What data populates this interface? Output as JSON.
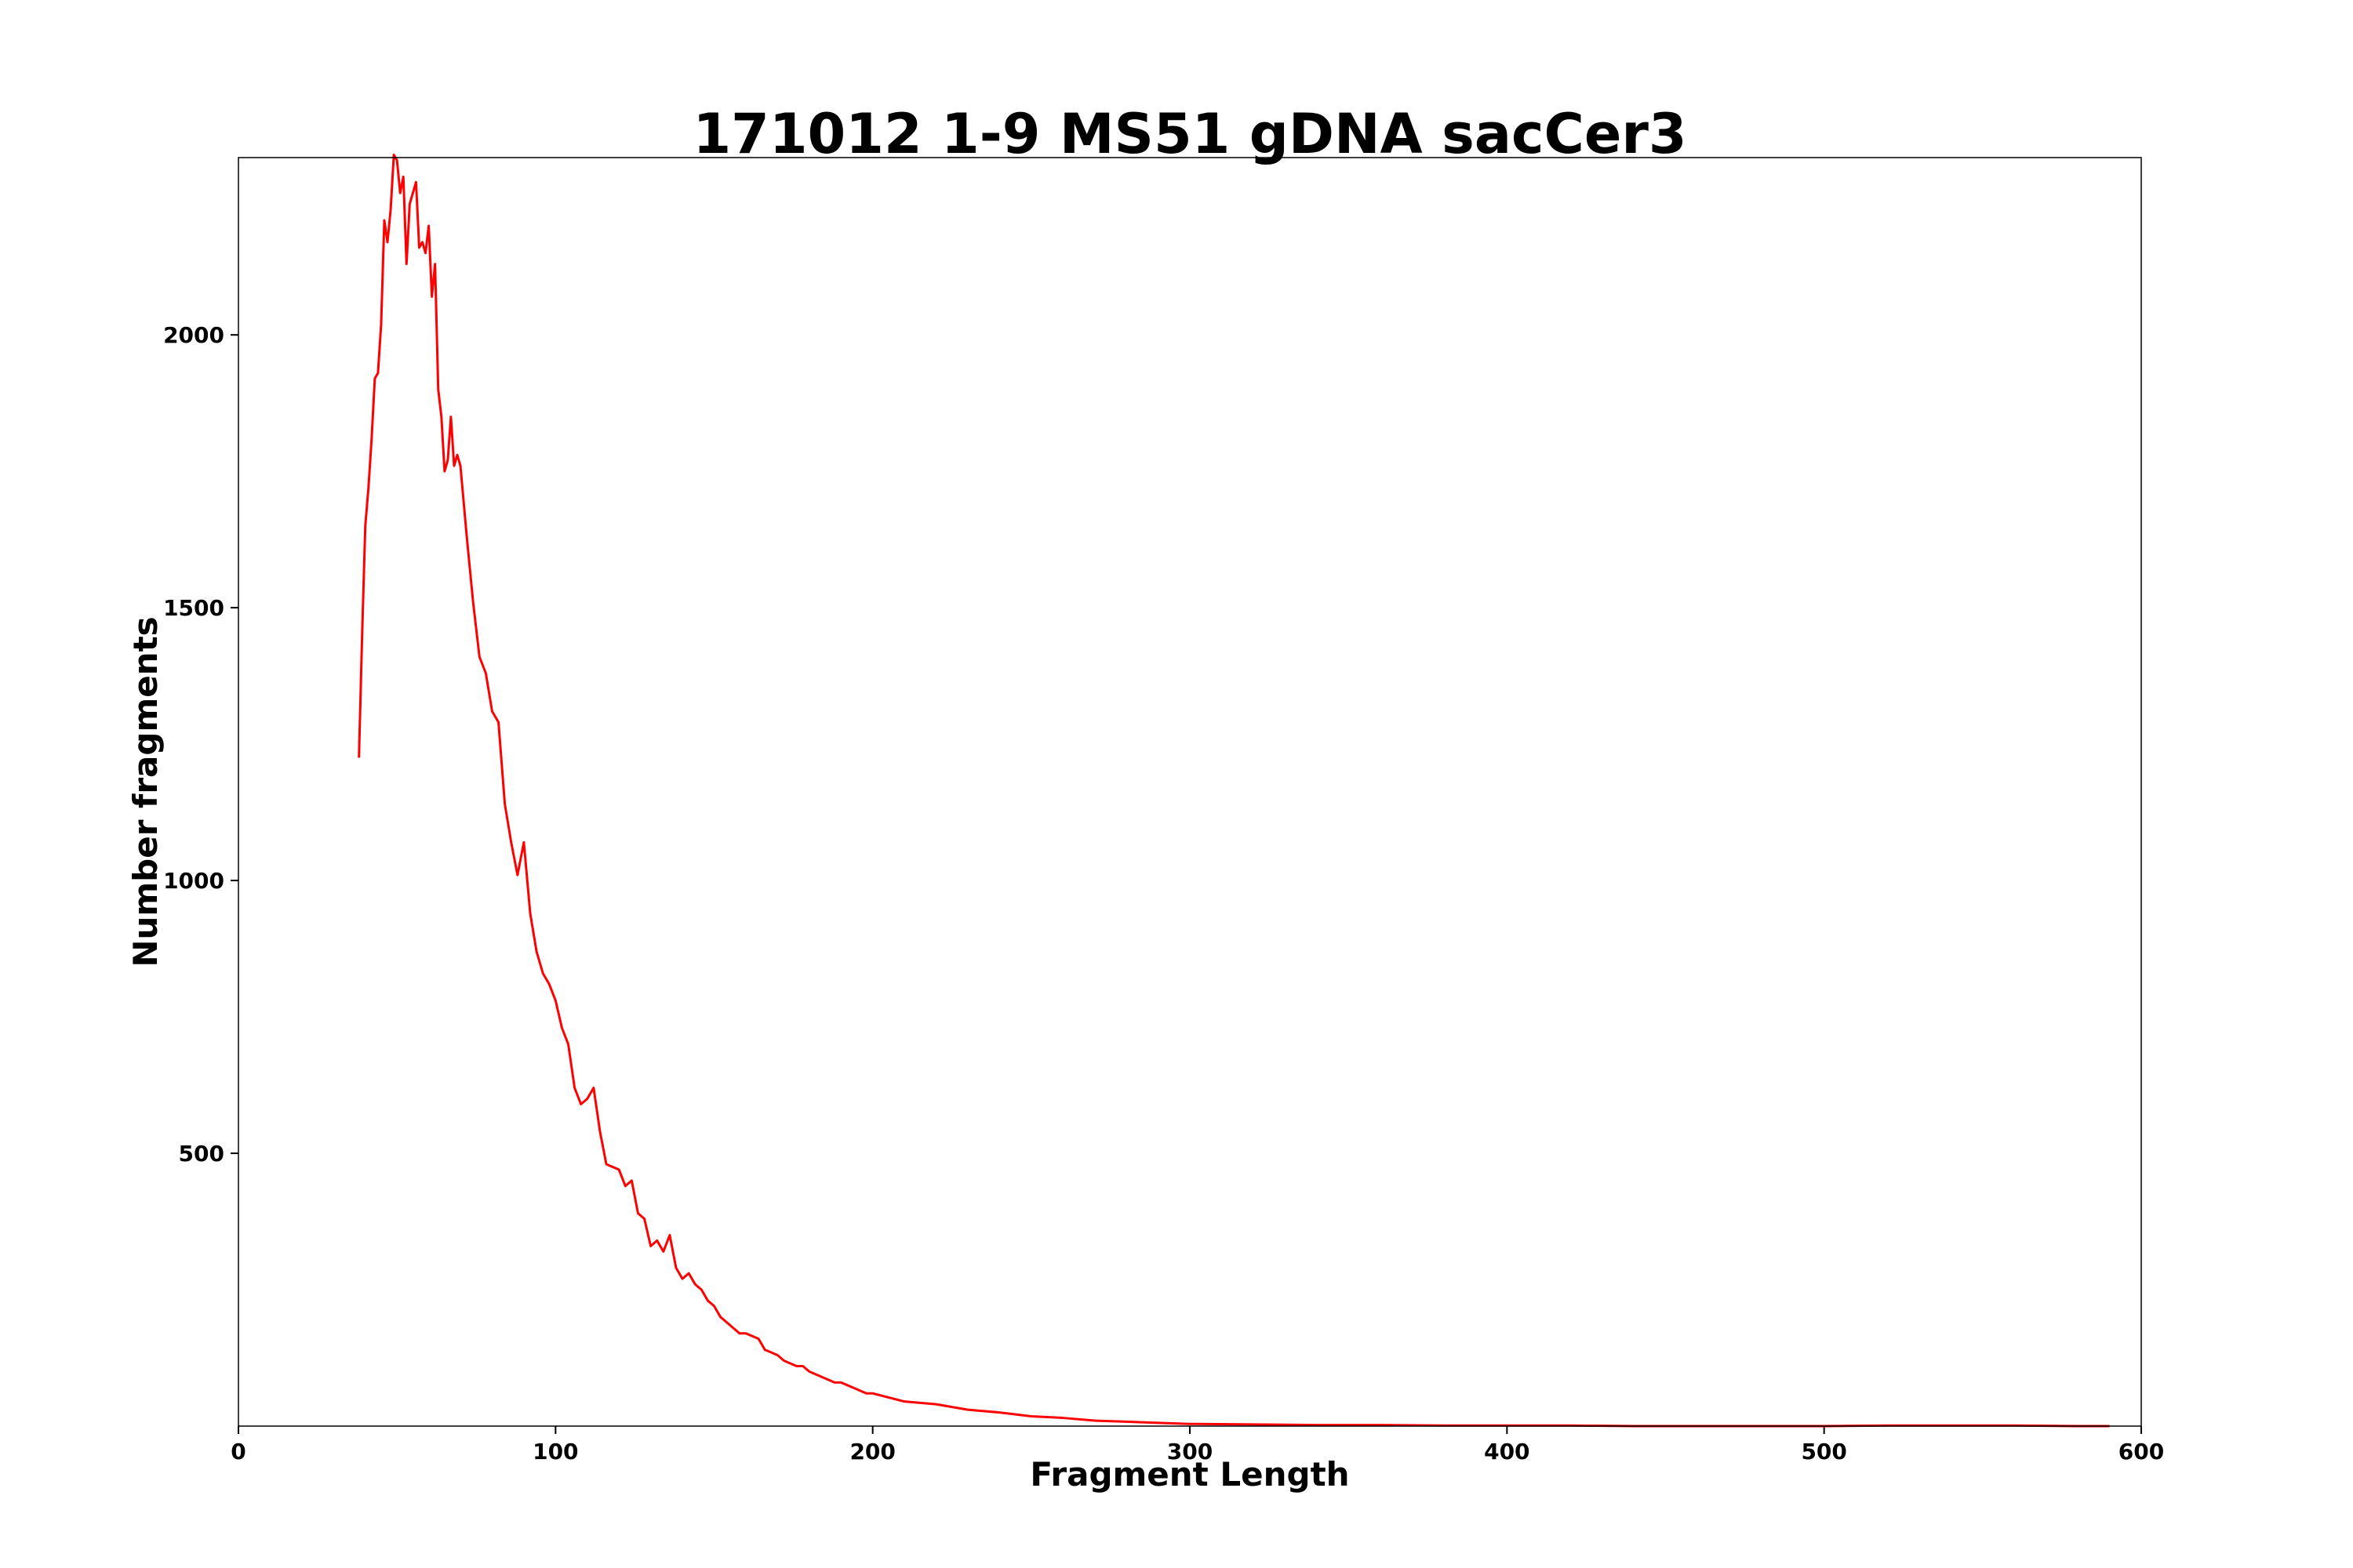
{
  "chart_data": {
    "type": "line",
    "title": "171012 1-9 MS51 gDNA sacCer3",
    "x_label": "Fragment Length",
    "y_label": "Number fragments",
    "color": "#ff0000",
    "x": [
      38,
      39,
      40,
      41,
      42,
      43,
      44,
      45,
      46,
      47,
      48,
      49,
      50,
      51,
      52,
      53,
      54,
      55,
      56,
      57,
      58,
      59,
      60,
      61,
      62,
      63,
      64,
      65,
      66,
      67,
      68,
      69,
      70,
      72,
      74,
      76,
      78,
      80,
      82,
      84,
      86,
      88,
      90,
      92,
      94,
      96,
      98,
      100,
      102,
      104,
      106,
      108,
      110,
      112,
      114,
      116,
      118,
      120,
      122,
      124,
      126,
      128,
      130,
      132,
      134,
      136,
      138,
      140,
      142,
      144,
      146,
      148,
      150,
      152,
      154,
      156,
      158,
      160,
      162,
      164,
      166,
      168,
      170,
      172,
      174,
      176,
      178,
      180,
      182,
      184,
      186,
      188,
      190,
      192,
      194,
      196,
      198,
      200,
      210,
      220,
      230,
      240,
      250,
      260,
      270,
      280,
      290,
      300,
      320,
      340,
      360,
      380,
      400,
      420,
      440,
      460,
      480,
      500,
      520,
      540,
      560,
      580,
      590
    ],
    "values": [
      1225,
      1450,
      1650,
      1720,
      1810,
      1920,
      1930,
      2020,
      2210,
      2170,
      2230,
      2330,
      2320,
      2260,
      2290,
      2130,
      2240,
      2260,
      2280,
      2160,
      2170,
      2150,
      2200,
      2070,
      2130,
      1900,
      1850,
      1750,
      1770,
      1850,
      1760,
      1780,
      1760,
      1630,
      1510,
      1410,
      1380,
      1310,
      1290,
      1140,
      1070,
      1010,
      1070,
      940,
      870,
      830,
      810,
      780,
      730,
      700,
      620,
      590,
      600,
      620,
      540,
      480,
      475,
      470,
      440,
      450,
      390,
      380,
      330,
      340,
      320,
      350,
      290,
      270,
      280,
      260,
      250,
      230,
      220,
      200,
      190,
      180,
      170,
      170,
      165,
      160,
      140,
      135,
      130,
      120,
      115,
      110,
      110,
      100,
      95,
      90,
      85,
      80,
      80,
      75,
      70,
      65,
      60,
      60,
      45,
      40,
      30,
      25,
      18,
      15,
      10,
      8,
      6,
      4,
      3,
      2,
      2,
      1,
      1,
      1,
      0,
      0,
      0,
      0,
      1,
      1,
      1,
      0,
      0
    ],
    "xlim": [
      0,
      600
    ],
    "xticks": [
      0,
      100,
      200,
      300,
      400,
      500,
      600
    ],
    "ylim": [
      0,
      2325
    ],
    "yticks": [
      500,
      1000,
      1500,
      2000
    ]
  }
}
